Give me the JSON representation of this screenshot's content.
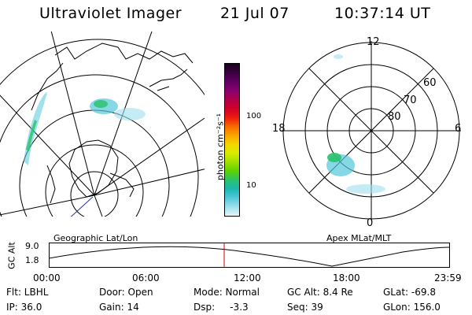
{
  "header": {
    "instrument": "Ultraviolet Imager",
    "date": "21 Jul 07",
    "time": "10:37:14 UT"
  },
  "colorbar": {
    "unit_label": "photon cm⁻²s⁻¹",
    "ticks": [
      "100",
      "10"
    ],
    "colors": [
      "#1a0020",
      "#3a0040",
      "#600060",
      "#8a0070",
      "#b0004a",
      "#d10028",
      "#ee1a10",
      "#f66a00",
      "#f9a400",
      "#f4d600",
      "#d8ec00",
      "#a0e000",
      "#5ed200",
      "#2ac26a",
      "#1ab8b0",
      "#52c8da",
      "#9ee0ec",
      "#e6f6f8"
    ]
  },
  "geographic_panel": {
    "label": "Geographic Lat/Lon"
  },
  "polar_panel": {
    "label": "Apex MLat/MLT",
    "mlt_labels": {
      "top": "12",
      "left": "18",
      "right": "6",
      "bottom": "0"
    },
    "lat_labels": [
      "60",
      "70",
      "80"
    ]
  },
  "timeline": {
    "ylabel": "GC Alt",
    "y_ticks": [
      "9.0",
      "1.8"
    ],
    "x_ticks": [
      "00:00",
      "06:00",
      "12:00",
      "18:00",
      "23:59"
    ],
    "current_marker_color": "#d00000"
  },
  "info": {
    "row1": {
      "flt": "Flt: LBHL",
      "door": "Door: Open",
      "mode": "Mode: Normal",
      "gcalt": "GC Alt: 8.4 Re",
      "glat": "GLat: -69.8"
    },
    "row2": {
      "ip": "IP: 36.0",
      "gain": "Gain: 14",
      "dsp": "Dsp:     -3.3",
      "seq": "Seq: 39",
      "glon": "GLon: 156.0"
    }
  }
}
